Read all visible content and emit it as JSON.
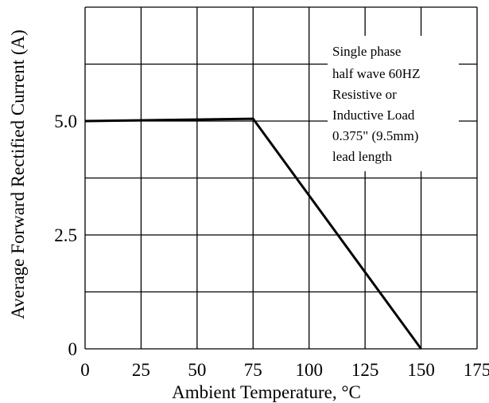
{
  "chart_data": {
    "type": "line",
    "title": "",
    "xlabel": "Ambient Temperature, °C",
    "ylabel": "Average Forward Rectified Current (A)",
    "xlim": [
      0,
      175
    ],
    "ylim": [
      0,
      7.5
    ],
    "x_ticks": [
      0,
      25,
      50,
      75,
      100,
      125,
      150,
      175
    ],
    "x_tick_labels": [
      "0",
      "25",
      "50",
      "75",
      "100",
      "125",
      "150",
      "175"
    ],
    "y_ticks": [
      0,
      2.5,
      5.0
    ],
    "y_tick_labels": [
      "0",
      "2.5",
      "5.0"
    ],
    "y_grid": [
      0,
      1.25,
      2.5,
      3.75,
      5.0,
      6.25,
      7.5
    ],
    "grid": true,
    "series": [
      {
        "color": "#000000",
        "x": [
          0,
          75,
          150
        ],
        "y": [
          5.0,
          5.05,
          0
        ]
      }
    ],
    "annotation": [
      "Single phase",
      "half  wave 60HZ",
      "Resistive or",
      "Inductive Load",
      "0.375\" (9.5mm)",
      "lead length"
    ]
  }
}
